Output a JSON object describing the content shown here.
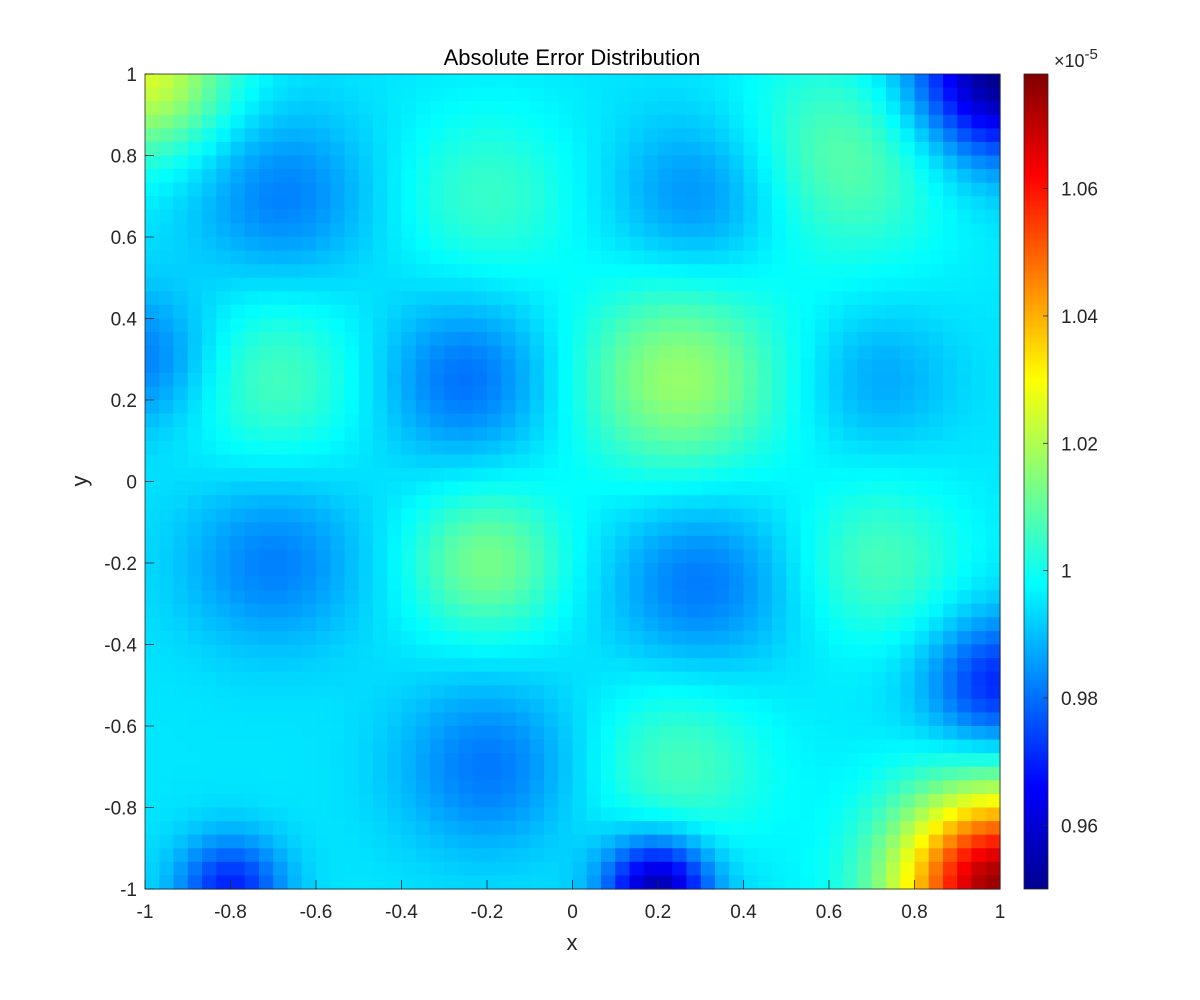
{
  "chart_data": {
    "type": "heatmap",
    "title": "Absolute Error Distribution",
    "xlabel": "x",
    "ylabel": "y",
    "xlim": [
      -1,
      1
    ],
    "ylim": [
      -1,
      1
    ],
    "x_ticks": [
      "-1",
      "-0.8",
      "-0.6",
      "-0.4",
      "-0.2",
      "0",
      "0.2",
      "0.4",
      "0.6",
      "0.8",
      "1"
    ],
    "y_ticks": [
      "1",
      "0.8",
      "0.6",
      "0.4",
      "0.2",
      "0",
      "-0.2",
      "-0.4",
      "-0.6",
      "-0.8",
      "-1"
    ],
    "colormap": "jet",
    "colorbar": {
      "multiplier": "×10",
      "exponent": "-5",
      "clim": [
        0.95,
        1.078
      ],
      "ticks": [
        "1.06",
        "1.04",
        "1.02",
        "1",
        "0.98",
        "0.96"
      ],
      "tick_values": [
        1.06,
        1.04,
        1.02,
        1.0,
        0.98,
        0.96
      ],
      "placement": "right"
    },
    "grid": false,
    "surface": {
      "units": "×10^-5",
      "base": 0.995,
      "features": [
        {
          "x": -0.68,
          "y": 0.7,
          "amp": -0.013,
          "w": 0.15
        },
        {
          "x": -0.25,
          "y": 0.25,
          "amp": -0.015,
          "w": 0.14
        },
        {
          "x": -0.7,
          "y": -0.2,
          "amp": -0.013,
          "w": 0.15
        },
        {
          "x": -0.2,
          "y": -0.7,
          "amp": -0.014,
          "w": 0.15
        },
        {
          "x": 0.3,
          "y": 0.7,
          "amp": -0.012,
          "w": 0.14
        },
        {
          "x": 0.3,
          "y": -0.25,
          "amp": -0.014,
          "w": 0.15
        },
        {
          "x": 0.72,
          "y": 0.25,
          "amp": -0.008,
          "w": 0.12
        },
        {
          "x": -0.7,
          "y": 0.25,
          "amp": 0.012,
          "w": 0.15
        },
        {
          "x": -0.2,
          "y": -0.2,
          "amp": 0.018,
          "w": 0.13
        },
        {
          "x": 0.25,
          "y": 0.25,
          "amp": 0.022,
          "w": 0.17
        },
        {
          "x": 0.72,
          "y": -0.2,
          "amp": 0.012,
          "w": 0.14
        },
        {
          "x": 0.65,
          "y": 0.8,
          "amp": 0.015,
          "w": 0.18
        },
        {
          "x": -0.2,
          "y": 0.7,
          "amp": 0.01,
          "w": 0.15
        },
        {
          "x": 0.25,
          "y": -0.7,
          "amp": 0.012,
          "w": 0.15
        },
        {
          "x": -1.0,
          "y": 1.0,
          "amp": 0.03,
          "w": 0.14
        },
        {
          "x": 1.0,
          "y": 1.0,
          "amp": -0.045,
          "w": 0.15
        },
        {
          "x": 1.0,
          "y": -1.0,
          "amp": 0.08,
          "w": 0.17
        },
        {
          "x": 0.2,
          "y": -1.0,
          "amp": -0.04,
          "w": 0.09
        },
        {
          "x": -0.8,
          "y": -1.0,
          "amp": -0.025,
          "w": 0.09
        },
        {
          "x": 1.0,
          "y": -0.5,
          "amp": -0.025,
          "w": 0.12
        },
        {
          "x": -1.0,
          "y": 0.3,
          "amp": -0.014,
          "w": 0.12
        }
      ]
    }
  }
}
